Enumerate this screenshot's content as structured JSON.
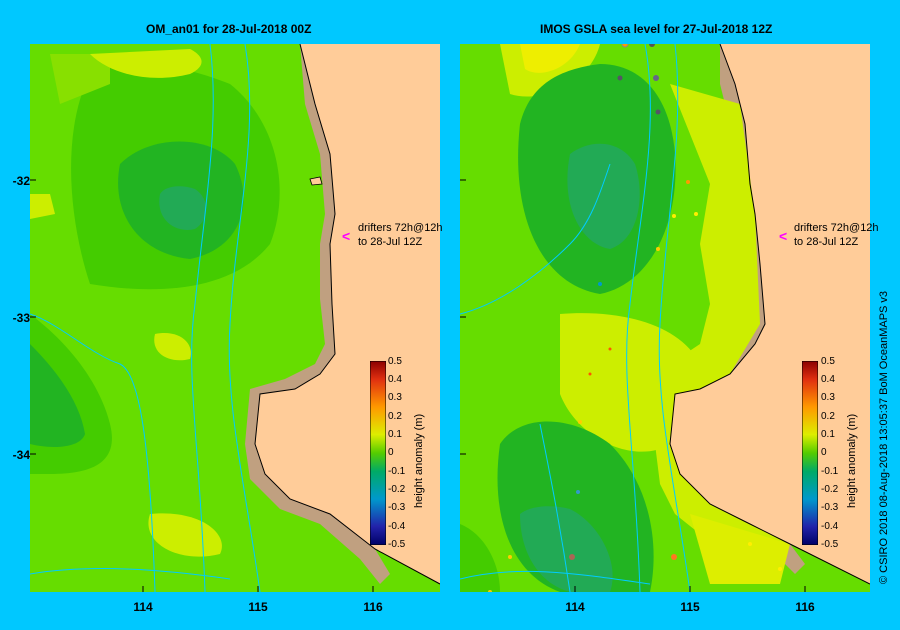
{
  "left_panel": {
    "title": "OM_an01 for 28-Jul-2018 00Z",
    "drifter_line1": "drifters 72h@12h",
    "drifter_line2": "to 28-Jul 12Z",
    "colorbar_title": "height anomaly (m)",
    "colorbar_ticks": [
      "0.5",
      "0.4",
      "0.3",
      "0.2",
      "0.1",
      "0",
      "-0.1",
      "-0.2",
      "-0.3",
      "-0.4",
      "-0.5"
    ]
  },
  "right_panel": {
    "title": "IMOS GSLA sea level  for 27-Jul-2018 12Z",
    "drifter_line1": "drifters 72h@12h",
    "drifter_line2": "to 28-Jul 12Z",
    "colorbar_title": "height anomaly (m)",
    "colorbar_ticks": [
      "0.5",
      "0.4",
      "0.3",
      "0.2",
      "0.1",
      "0",
      "-0.1",
      "-0.2",
      "-0.3",
      "-0.4",
      "-0.5"
    ]
  },
  "axes": {
    "lat_ticks": [
      "-32",
      "-33",
      "-34"
    ],
    "lon_ticks": [
      "114",
      "115",
      "116"
    ]
  },
  "credit": "© CSIRO 2018   08-Aug-2018 13:05:37 BoM OceanMAPS v3",
  "colors": {
    "background": "#00c8ff",
    "land": "#ffcc99",
    "coast": "#c0a080",
    "arrow": "#ff00ff"
  }
}
